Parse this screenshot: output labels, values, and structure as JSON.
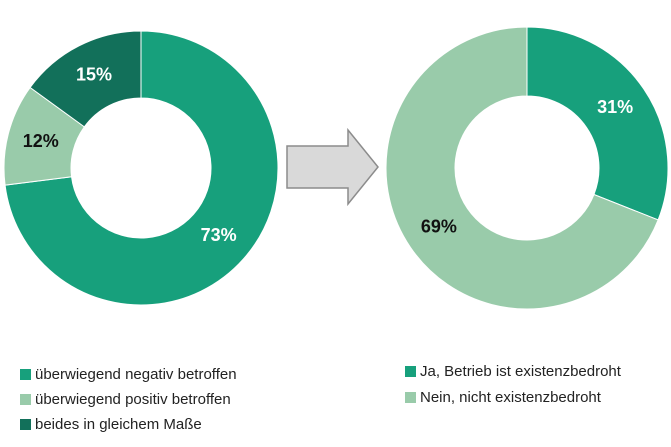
{
  "chart_data": [
    {
      "type": "pie",
      "categories": [
        "überwiegend negativ betroffen",
        "überwiegend positiv betroffen",
        "beides in gleichem Maße"
      ],
      "values": [
        73,
        12,
        15
      ],
      "value_labels": [
        "73%",
        "12%",
        "15%"
      ],
      "colors": [
        "#17a07c",
        "#99cbaa",
        "#12705a"
      ]
    },
    {
      "type": "pie",
      "categories": [
        "Ja, Betrieb ist existenzbedroht",
        "Nein, nicht existenzbedroht"
      ],
      "values": [
        31,
        69
      ],
      "value_labels": [
        "31%",
        "69%"
      ],
      "colors": [
        "#17a07c",
        "#99cbaa"
      ]
    }
  ]
}
